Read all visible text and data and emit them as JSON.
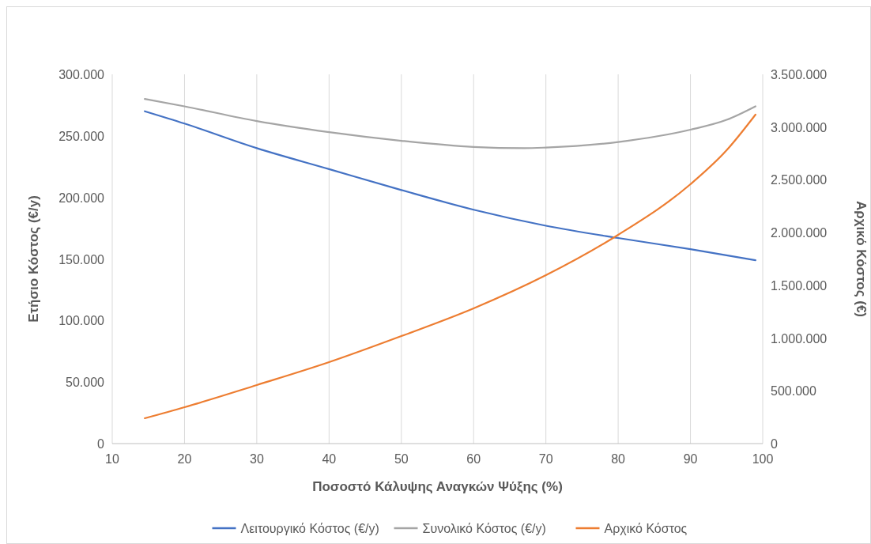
{
  "chart_data": {
    "type": "line",
    "xlabel": "Ποσοστό Κάλυψης Αναγκών Ψύξης (%)",
    "ylabel": "Ετήσιο Κόστος (€/y)",
    "y2label": "Αρχικό Κόστος (€)",
    "xlim": [
      10,
      100
    ],
    "xticks": [
      10,
      20,
      30,
      40,
      50,
      60,
      70,
      80,
      90,
      100
    ],
    "ylim": [
      0,
      300000
    ],
    "yticks": [
      {
        "value": 0,
        "label": "0"
      },
      {
        "value": 50000,
        "label": "50.000"
      },
      {
        "value": 100000,
        "label": "100.000"
      },
      {
        "value": 150000,
        "label": "150.000"
      },
      {
        "value": 200000,
        "label": "200.000"
      },
      {
        "value": 250000,
        "label": "250.000"
      },
      {
        "value": 300000,
        "label": "300.000"
      }
    ],
    "y2lim": [
      0,
      3500000
    ],
    "y2ticks": [
      {
        "value": 0,
        "label": "0"
      },
      {
        "value": 500000,
        "label": "500.000"
      },
      {
        "value": 1000000,
        "label": "1.000.000"
      },
      {
        "value": 1500000,
        "label": "1.500.000"
      },
      {
        "value": 2000000,
        "label": "2.000.000"
      },
      {
        "value": 2500000,
        "label": "2.500.000"
      },
      {
        "value": 3000000,
        "label": "3.000.000"
      },
      {
        "value": 3500000,
        "label": "3.500.000"
      }
    ],
    "grid": "x",
    "legend": "bottom",
    "marker": "none",
    "line_style": "solid",
    "series": [
      {
        "name": "Λειτουργικό Κόστος (€/y)",
        "color": "#4472c4",
        "x": [
          14.5,
          20,
          30,
          40,
          50,
          60,
          70,
          80,
          90,
          99
        ],
        "values": [
          270000,
          260000,
          240000,
          223000,
          206000,
          190000,
          177000,
          167000,
          158000,
          149000
        ]
      },
      {
        "name": "Συνολικό Κόστος (€/y)",
        "color": "#a5a5a5",
        "x": [
          14.5,
          20,
          30,
          40,
          50,
          60,
          67,
          70,
          80,
          90,
          95,
          99
        ],
        "values": [
          280000,
          274000,
          262000,
          253000,
          246000,
          241000,
          240000,
          240500,
          245000,
          255000,
          263000,
          274000
        ]
      },
      {
        "name": "Αρχικό Κόστος",
        "color": "#ed7d31",
        "axis": "y2",
        "x": [
          14.5,
          20,
          30,
          40,
          50,
          60,
          70,
          80,
          90,
          95,
          99
        ],
        "values": [
          240000,
          345000,
          555000,
          772000,
          1019000,
          1282000,
          1596000,
          1979000,
          2458000,
          2780000,
          3118000
        ]
      }
    ]
  }
}
